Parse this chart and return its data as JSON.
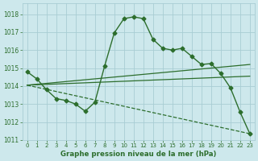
{
  "background_color": "#cde8ec",
  "grid_color": "#a8cdd4",
  "line_color": "#2d6e2d",
  "title": "Graphe pression niveau de la mer (hPa)",
  "xlim": [
    -0.5,
    23.5
  ],
  "ylim": [
    1011.0,
    1018.6
  ],
  "yticks": [
    1011,
    1012,
    1013,
    1014,
    1015,
    1016,
    1017,
    1018
  ],
  "xticks": [
    0,
    1,
    2,
    3,
    4,
    5,
    6,
    7,
    8,
    9,
    10,
    11,
    12,
    13,
    14,
    15,
    16,
    17,
    18,
    19,
    20,
    21,
    22,
    23
  ],
  "series": [
    {
      "x": [
        0,
        1,
        2,
        3,
        4,
        5,
        6,
        7,
        8,
        9,
        10,
        11,
        12,
        13,
        14,
        15,
        16,
        17,
        18,
        19,
        20,
        21,
        22,
        23
      ],
      "y": [
        1014.8,
        1014.4,
        1013.8,
        1013.3,
        1013.2,
        1013.0,
        1012.6,
        1013.1,
        1015.1,
        1016.95,
        1017.75,
        1017.85,
        1017.75,
        1016.6,
        1016.1,
        1016.0,
        1016.1,
        1015.65,
        1015.2,
        1015.25,
        1014.7,
        1013.9,
        1012.55,
        1011.35
      ],
      "marker": "D",
      "markersize": 2.5,
      "linewidth": 1.0,
      "linestyle": "-"
    },
    {
      "x": [
        0,
        23
      ],
      "y": [
        1014.05,
        1015.2
      ],
      "marker": null,
      "linewidth": 0.9,
      "linestyle": "-"
    },
    {
      "x": [
        0,
        23
      ],
      "y": [
        1014.05,
        1014.55
      ],
      "marker": null,
      "linewidth": 0.9,
      "linestyle": "-"
    },
    {
      "x": [
        0,
        23
      ],
      "y": [
        1014.05,
        1011.35
      ],
      "marker": null,
      "linewidth": 0.9,
      "linestyle": "--"
    }
  ]
}
